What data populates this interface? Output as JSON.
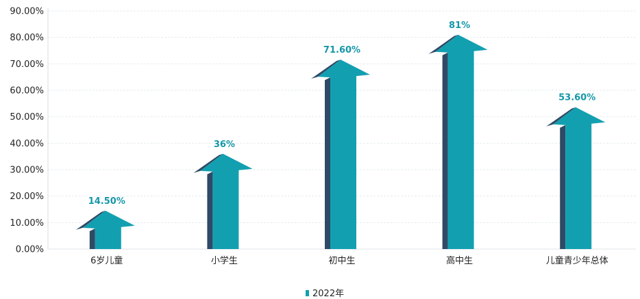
{
  "chart_data": {
    "type": "bar",
    "title": "",
    "xlabel": "",
    "ylabel": "",
    "ylim": [
      0,
      90
    ],
    "y_ticks": [
      "0.00%",
      "10.00%",
      "20.00%",
      "30.00%",
      "40.00%",
      "50.00%",
      "60.00%",
      "70.00%",
      "80.00%",
      "90.00%"
    ],
    "categories": [
      "6岁儿童",
      "小学生",
      "初中生",
      "高中生",
      "儿童青少年总体"
    ],
    "series": [
      {
        "name": "2022年",
        "values": [
          14.5,
          36,
          71.6,
          81,
          53.6
        ],
        "labels": [
          "14.50%",
          "36%",
          "71.60%",
          "81%",
          "53.60%"
        ]
      }
    ],
    "grid": true,
    "legend_position": "bottom",
    "colors": {
      "arrow_face": "#12a0b0",
      "arrow_side": "#2f4a66",
      "data_label": "#1597a8",
      "legend_marker": "#12a0b0"
    },
    "mark_style": "3d-arrow"
  }
}
